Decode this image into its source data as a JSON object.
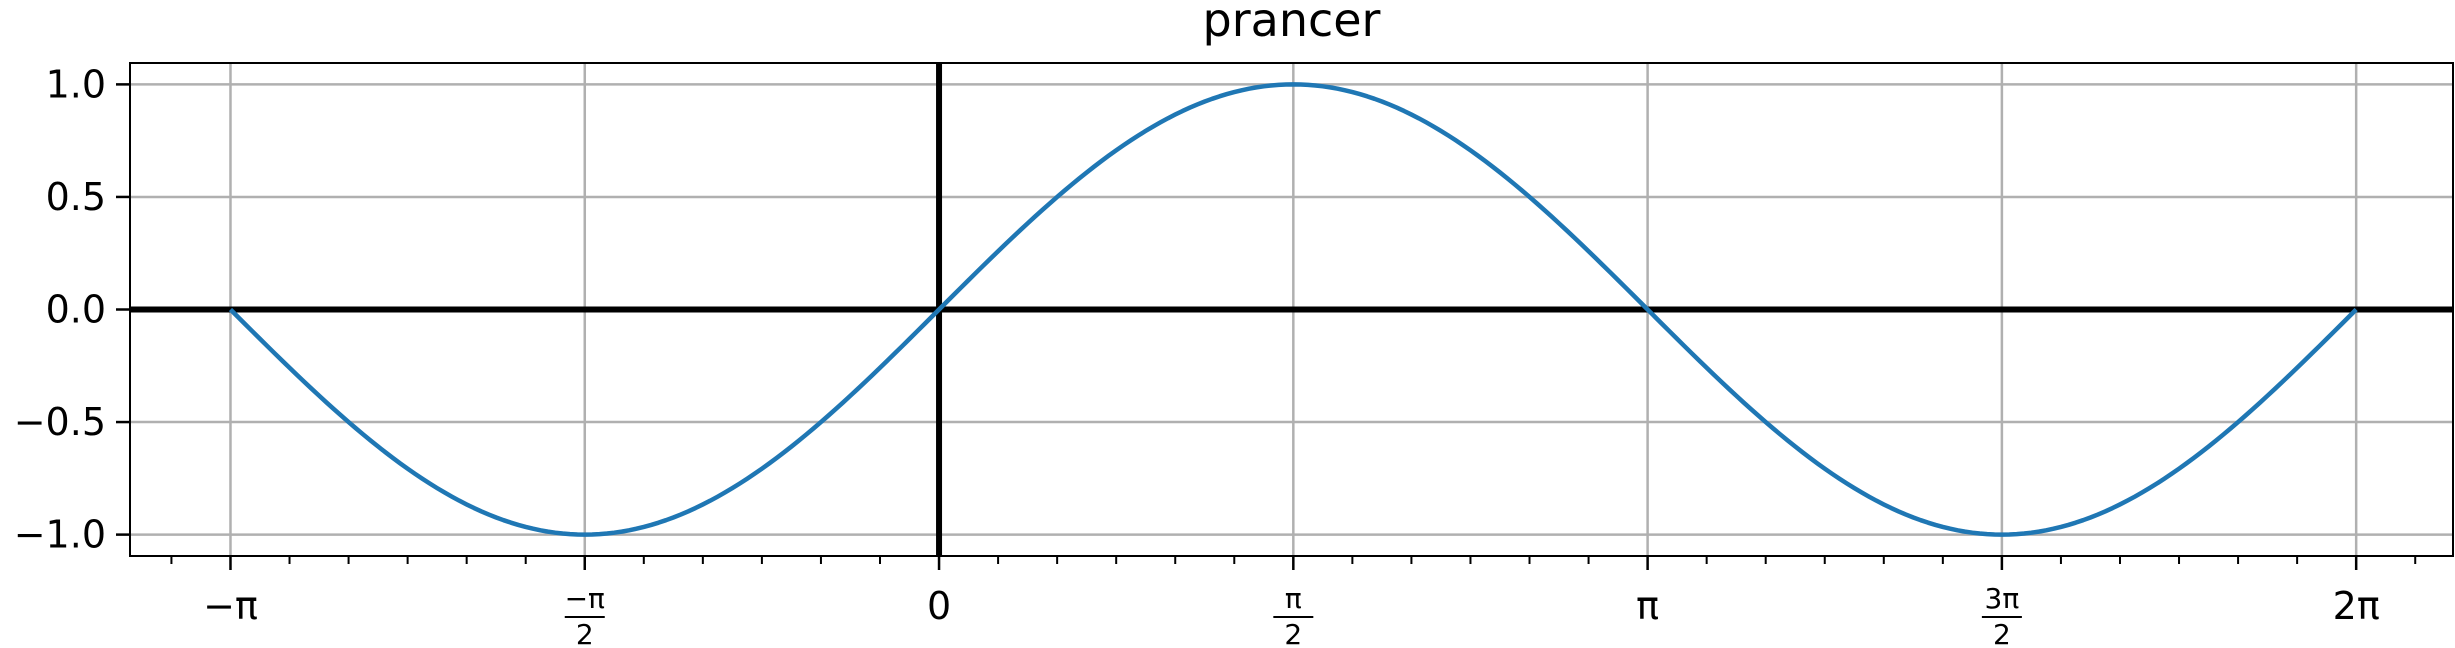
{
  "chart_data": {
    "type": "line",
    "title": "prancer",
    "xlabel": "",
    "ylabel": "",
    "xlim": [
      -3.5871,
      6.7125
    ],
    "ylim": [
      -1.095,
      1.095
    ],
    "grid": true,
    "x_ticks": [
      {
        "value": -3.14159,
        "label": "−π"
      },
      {
        "value": -1.5708,
        "num": "−π",
        "den": "2"
      },
      {
        "value": 0,
        "label": "0"
      },
      {
        "value": 1.5708,
        "num": "π",
        "den": "2"
      },
      {
        "value": 3.14159,
        "label": "π"
      },
      {
        "value": 4.71239,
        "num": "3π",
        "den": "2"
      },
      {
        "value": 6.28319,
        "label": "2π"
      }
    ],
    "x_minor_step": 0.2618,
    "y_ticks": [
      {
        "value": 1.0,
        "label": "1.0"
      },
      {
        "value": 0.5,
        "label": "0.5"
      },
      {
        "value": 0.0,
        "label": "0.0"
      },
      {
        "value": -0.5,
        "label": "−0.5"
      },
      {
        "value": -1.0,
        "label": "−1.0"
      }
    ],
    "reference_lines": {
      "x": 0,
      "y": 0,
      "color": "#000000"
    },
    "series": [
      {
        "function": "sin(x)",
        "color": "#1f77b4",
        "x": [
          -3.14159,
          -2.74889,
          -2.35619,
          -1.9635,
          -1.5708,
          -1.1781,
          -0.7854,
          -0.3927,
          0,
          0.3927,
          0.7854,
          1.1781,
          1.5708,
          1.9635,
          2.35619,
          2.74889,
          3.14159,
          3.53429,
          3.92699,
          4.31969,
          4.71239,
          5.10509,
          5.49779,
          5.89049,
          6.28319
        ],
        "y": [
          0,
          -0.3827,
          -0.7071,
          -0.9239,
          -1.0,
          -0.9239,
          -0.7071,
          -0.3827,
          0,
          0.3827,
          0.7071,
          0.9239,
          1.0,
          0.9239,
          0.7071,
          0.3827,
          0,
          -0.3827,
          -0.7071,
          -0.9239,
          -1.0,
          -0.9239,
          -0.7071,
          -0.3827,
          0
        ]
      }
    ]
  }
}
